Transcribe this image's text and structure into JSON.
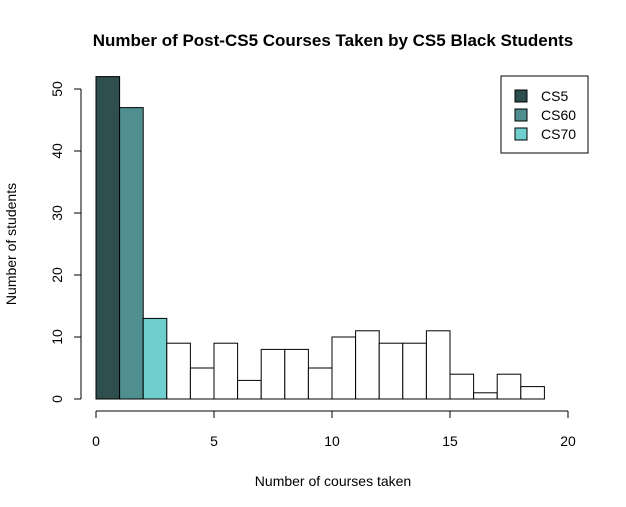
{
  "chart_data": {
    "type": "bar",
    "title": "Number of Post-CS5 Courses Taken by CS5 Black Students",
    "xlabel": "Number of courses taken",
    "ylabel": "Number of students",
    "xlim": [
      0,
      20
    ],
    "ylim": [
      0,
      52
    ],
    "xticks": [
      0,
      5,
      10,
      15,
      20
    ],
    "yticks": [
      0,
      10,
      20,
      30,
      40,
      50
    ],
    "grid": false,
    "legend_position": "top-right",
    "series": [
      {
        "name": "CS5",
        "color": "#2f4f4f"
      },
      {
        "name": "CS60",
        "color": "#4f8f8f"
      },
      {
        "name": "CS70",
        "color": "#6fcfcf"
      }
    ],
    "bins": [
      {
        "x0": 0,
        "x1": 1,
        "value": 52,
        "series": "CS5"
      },
      {
        "x0": 1,
        "x1": 2,
        "value": 47,
        "series": "CS60"
      },
      {
        "x0": 2,
        "x1": 3,
        "value": 13,
        "series": "CS70"
      },
      {
        "x0": 3,
        "x1": 4,
        "value": 9,
        "series": null
      },
      {
        "x0": 4,
        "x1": 5,
        "value": 5,
        "series": null
      },
      {
        "x0": 5,
        "x1": 6,
        "value": 9,
        "series": null
      },
      {
        "x0": 6,
        "x1": 7,
        "value": 3,
        "series": null
      },
      {
        "x0": 7,
        "x1": 8,
        "value": 8,
        "series": null
      },
      {
        "x0": 8,
        "x1": 9,
        "value": 8,
        "series": null
      },
      {
        "x0": 9,
        "x1": 10,
        "value": 5,
        "series": null
      },
      {
        "x0": 10,
        "x1": 11,
        "value": 10,
        "series": null
      },
      {
        "x0": 11,
        "x1": 12,
        "value": 11,
        "series": null
      },
      {
        "x0": 12,
        "x1": 13,
        "value": 9,
        "series": null
      },
      {
        "x0": 13,
        "x1": 14,
        "value": 9,
        "series": null
      },
      {
        "x0": 14,
        "x1": 15,
        "value": 11,
        "series": null
      },
      {
        "x0": 15,
        "x1": 16,
        "value": 4,
        "series": null
      },
      {
        "x0": 16,
        "x1": 17,
        "value": 1,
        "series": null
      },
      {
        "x0": 17,
        "x1": 18,
        "value": 4,
        "series": null
      },
      {
        "x0": 18,
        "x1": 19,
        "value": 2,
        "series": null
      }
    ]
  }
}
